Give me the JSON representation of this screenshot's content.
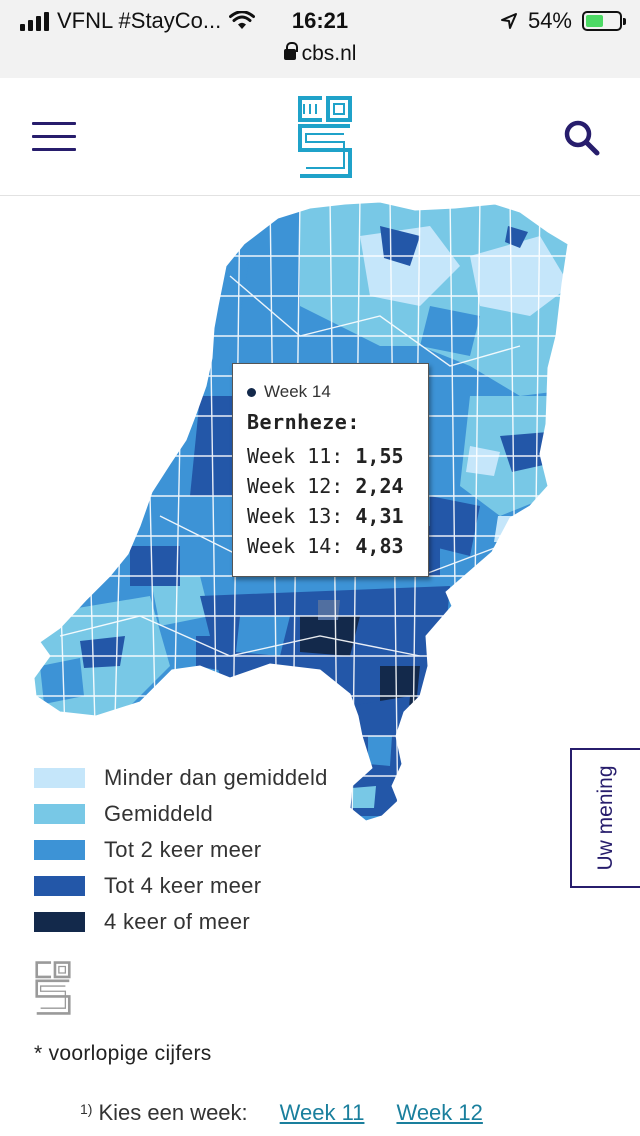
{
  "status_bar": {
    "carrier": "VFNL #StayCo...",
    "time": "16:21",
    "battery": "54%",
    "battery_level": 0.54,
    "url": "cbs.nl"
  },
  "header": {
    "menu_icon": "hamburger-menu-icon",
    "logo_icon": "cbs-logo-icon",
    "search_icon": "search-icon"
  },
  "colors": {
    "class1": "#c5e6fa",
    "class2": "#78c8e6",
    "class3": "#3d93d6",
    "class4": "#2357a8",
    "class5": "#13294b",
    "brand": "#271d6c",
    "logo": "#1fa2c9"
  },
  "tooltip": {
    "series": "Week 14",
    "municipality": "Bernheze:",
    "rows": [
      {
        "label": "Week 11:",
        "value": "1,55"
      },
      {
        "label": "Week 12:",
        "value": "2,24"
      },
      {
        "label": "Week 13:",
        "value": "4,31"
      },
      {
        "label": "Week 14:",
        "value": "4,83"
      }
    ]
  },
  "legend": [
    {
      "label": "Minder dan gemiddeld",
      "color": "#c5e6fa"
    },
    {
      "label": "Gemiddeld",
      "color": "#78c8e6"
    },
    {
      "label": "Tot 2 keer meer",
      "color": "#3d93d6"
    },
    {
      "label": "Tot 4 keer meer",
      "color": "#2357a8"
    },
    {
      "label": "4 keer of meer",
      "color": "#13294b"
    }
  ],
  "feedback": {
    "label": "Uw mening"
  },
  "footnote": "* voorlopige cijfers",
  "week_selector": {
    "marker": "1)",
    "label": "Kies een week:",
    "options": [
      "Week 11",
      "Week 12"
    ]
  }
}
